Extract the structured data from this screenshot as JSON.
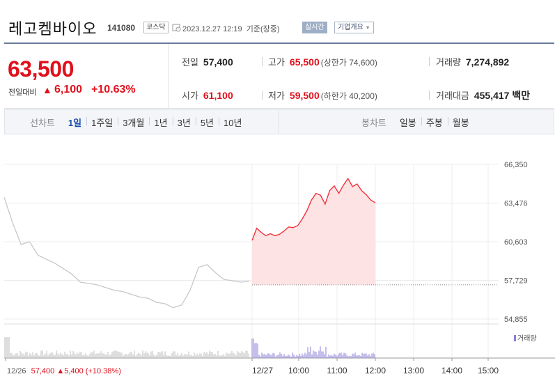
{
  "header": {
    "name": "레고켐바이오",
    "code": "141080",
    "market": "코스닥",
    "datetime": "2023.12.27 12:19  기준(장중)",
    "realtime_label": "실시간",
    "corp_info_label": "기업개요"
  },
  "summary": {
    "price": "63,500",
    "change_label": "전일대비",
    "change_arrow": "▲",
    "change_value": "6,100",
    "change_rate": "+10.63%",
    "prev_close": {
      "label": "전일",
      "value": "57,400"
    },
    "high": {
      "label": "고가",
      "value": "65,500",
      "sub": "(상한가 74,600)"
    },
    "volume": {
      "label": "거래량",
      "value": "7,274,892"
    },
    "open": {
      "label": "시가",
      "value": "61,100"
    },
    "low": {
      "label": "저가",
      "value": "59,500",
      "sub": "(하한가 40,200)"
    },
    "amount": {
      "label": "거래대금",
      "value": "455,417 백만"
    }
  },
  "line_chart_tabs": {
    "title": "선차트",
    "items": [
      "1일",
      "1주일",
      "3개월",
      "1년",
      "3년",
      "5년",
      "10년"
    ],
    "active": "1일"
  },
  "candle_chart_tabs": {
    "title": "봉차트",
    "items": [
      "일봉",
      "주봉",
      "월봉"
    ]
  },
  "chart_data": {
    "type": "line",
    "yticks": [
      "66,350",
      "63,476",
      "60,603",
      "57,729",
      "54,855"
    ],
    "ylim": [
      54855,
      66350
    ],
    "xticks": [
      "12/27",
      "10:00",
      "11:00",
      "12:00",
      "13:00",
      "14:00",
      "15:00"
    ],
    "reference_price": 57400,
    "volume_label": "거래량",
    "colors": {
      "today": "#f0323c",
      "today_fill": "#fde3e4",
      "prev_day": "#c8c8c8",
      "volume_today": "#8a7fd6",
      "volume_prev": "#bdbdbd"
    },
    "prev_day_series": [
      63900,
      62000,
      60400,
      60600,
      59600,
      59300,
      59000,
      58600,
      58200,
      57600,
      57500,
      57400,
      57200,
      57000,
      56900,
      56700,
      56500,
      56400,
      56100,
      56000,
      55700,
      55900,
      57000,
      58700,
      58900,
      58300,
      57800,
      57700,
      57600,
      57650
    ],
    "today_series": [
      60700,
      61600,
      61300,
      61050,
      61200,
      61050,
      61150,
      61400,
      61700,
      61650,
      61800,
      62300,
      62900,
      63700,
      64200,
      64050,
      63400,
      64400,
      64750,
      64200,
      64800,
      65300,
      64700,
      64900,
      64400,
      64100,
      63700,
      63500
    ]
  },
  "footer": {
    "prev_date": "12/26",
    "prev_price": "57,400",
    "prev_arrow": "▲",
    "prev_change": "5,400",
    "prev_rate": "(+10.38%)"
  }
}
